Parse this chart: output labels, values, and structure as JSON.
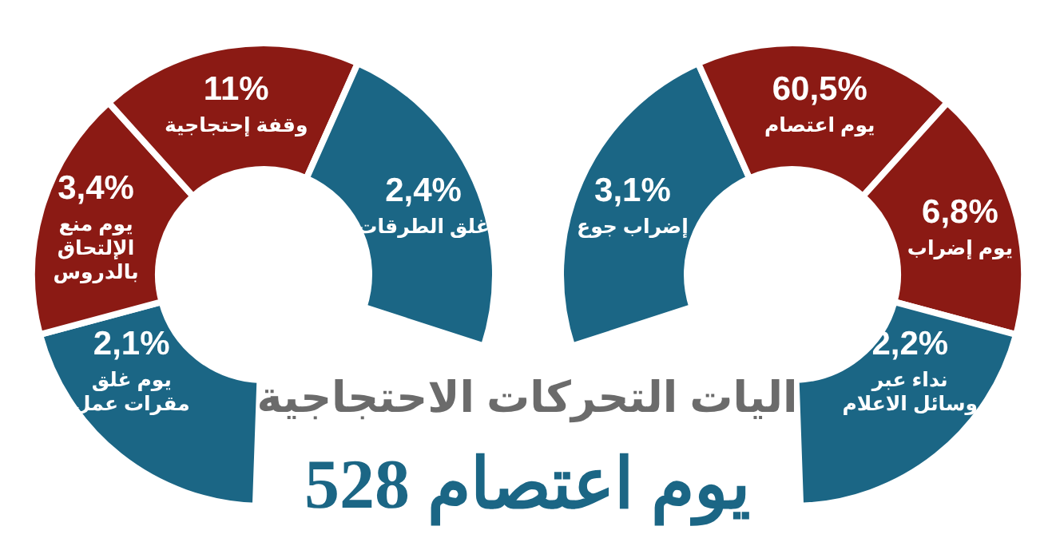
{
  "chart_data": {
    "type": "other",
    "title": "اليات التحركات الاحتجاجية",
    "subtitle": "يوم اعتصام 528",
    "categories": [
      "يوم غلق مقرات عمل",
      "يوم منع الإلتحاق بالدروس",
      "وقفة إحتجاجية",
      "غلق الطرقات",
      "إضراب جوع",
      "يوم اعتصام",
      "يوم إضراب",
      "نداء عبر وسائل الاعلام"
    ],
    "values": [
      2.1,
      3.4,
      11,
      2.4,
      3.1,
      60.5,
      6.8,
      2.2
    ],
    "value_labels": [
      "2,1%",
      "3,4%",
      "11%",
      "2,4%",
      "3,1%",
      "60,5%",
      "6,8%",
      "2,2%"
    ],
    "colors": [
      "#1b6685",
      "#8b1a14",
      "#8b1a14",
      "#1b6685",
      "#1b6685",
      "#8b1a14",
      "#8b1a14",
      "#1b6685"
    ]
  }
}
